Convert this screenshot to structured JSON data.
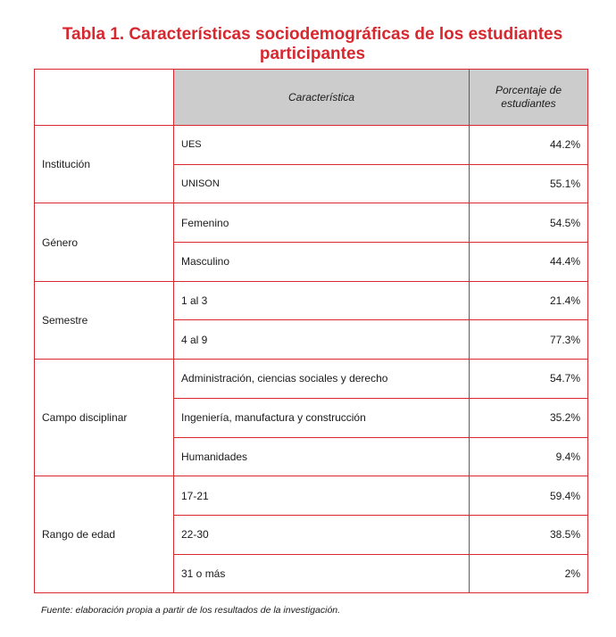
{
  "title": "Tabla 1. Características sociodemográficas de los estudiantes participantes",
  "table": {
    "header": {
      "characteristic": "Característica",
      "percentage": "Porcentaje de estudiantes"
    },
    "groups": [
      {
        "label": "Institución",
        "items": [
          {
            "label": "UES",
            "value": "44.2%"
          },
          {
            "label": "UNISON",
            "value": "55.1%"
          }
        ]
      },
      {
        "label": "Género",
        "items": [
          {
            "label": "Femenino",
            "value": "54.5%"
          },
          {
            "label": "Masculino",
            "value": "44.4%"
          }
        ]
      },
      {
        "label": "Semestre",
        "items": [
          {
            "label": "1 al 3",
            "value": "21.4%"
          },
          {
            "label": "4 al 9",
            "value": "77.3%"
          }
        ]
      },
      {
        "label": "Campo disciplinar",
        "items": [
          {
            "label": "Administración, ciencias sociales y derecho",
            "value": "54.7%"
          },
          {
            "label": "Ingeniería, manufactura y construcción",
            "value": "35.2%"
          },
          {
            "label": "Humanidades",
            "value": "9.4%"
          }
        ]
      },
      {
        "label": "Rango de edad",
        "items": [
          {
            "label": "17-21",
            "value": "59.4%"
          },
          {
            "label": "22-30",
            "value": "38.5%"
          },
          {
            "label": "31 o más",
            "value": "2%"
          }
        ]
      }
    ]
  },
  "source": "Fuente: elaboración propia a partir de los resultados de la investigación."
}
